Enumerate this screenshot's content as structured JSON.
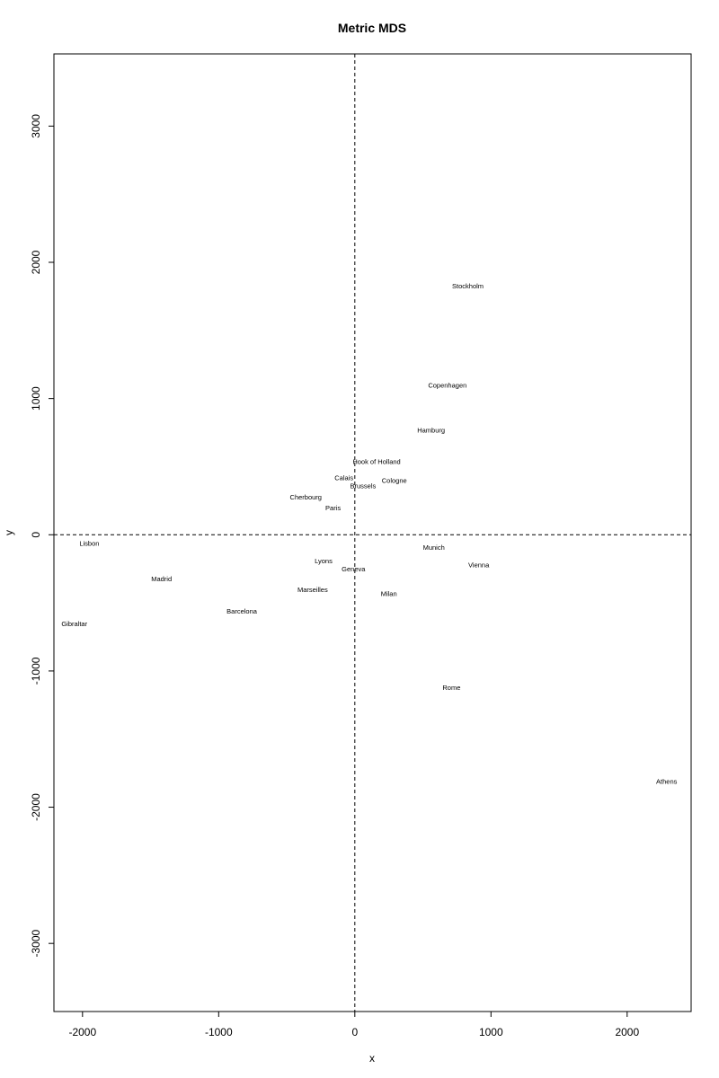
{
  "chart_data": {
    "type": "scatter",
    "title": "Metric MDS",
    "xlabel": "x",
    "ylabel": "y",
    "xlim": [
      -2210,
      2470
    ],
    "ylim": [
      -3500,
      3530
    ],
    "xticks": [
      -2000,
      -1000,
      0,
      1000,
      2000
    ],
    "yticks": [
      -3000,
      -2000,
      -1000,
      0,
      1000,
      2000,
      3000
    ],
    "reference_lines": {
      "x": 0,
      "y": 0,
      "style": "dashed"
    },
    "points": [
      {
        "label": "Stockholm",
        "x": 830,
        "y": 1830
      },
      {
        "label": "Copenhagen",
        "x": 680,
        "y": 1100
      },
      {
        "label": "Hamburg",
        "x": 560,
        "y": 770
      },
      {
        "label": "Hook of Holland",
        "x": 160,
        "y": 540
      },
      {
        "label": "Calais",
        "x": -80,
        "y": 420
      },
      {
        "label": "Cologne",
        "x": 290,
        "y": 400
      },
      {
        "label": "Brussels",
        "x": 60,
        "y": 360
      },
      {
        "label": "Cherbourg",
        "x": -360,
        "y": 280
      },
      {
        "label": "Paris",
        "x": -160,
        "y": 200
      },
      {
        "label": "Lisbon",
        "x": -1950,
        "y": -60
      },
      {
        "label": "Munich",
        "x": 580,
        "y": -90
      },
      {
        "label": "Lyons",
        "x": -230,
        "y": -190
      },
      {
        "label": "Vienna",
        "x": 910,
        "y": -220
      },
      {
        "label": "Geneva",
        "x": -10,
        "y": -250
      },
      {
        "label": "Madrid",
        "x": -1420,
        "y": -320
      },
      {
        "label": "Marseilles",
        "x": -310,
        "y": -400
      },
      {
        "label": "Milan",
        "x": 250,
        "y": -430
      },
      {
        "label": "Barcelona",
        "x": -830,
        "y": -560
      },
      {
        "label": "Gibraltar",
        "x": -2060,
        "y": -650
      },
      {
        "label": "Rome",
        "x": 710,
        "y": -1120
      },
      {
        "label": "Athens",
        "x": 2290,
        "y": -1810
      }
    ]
  }
}
